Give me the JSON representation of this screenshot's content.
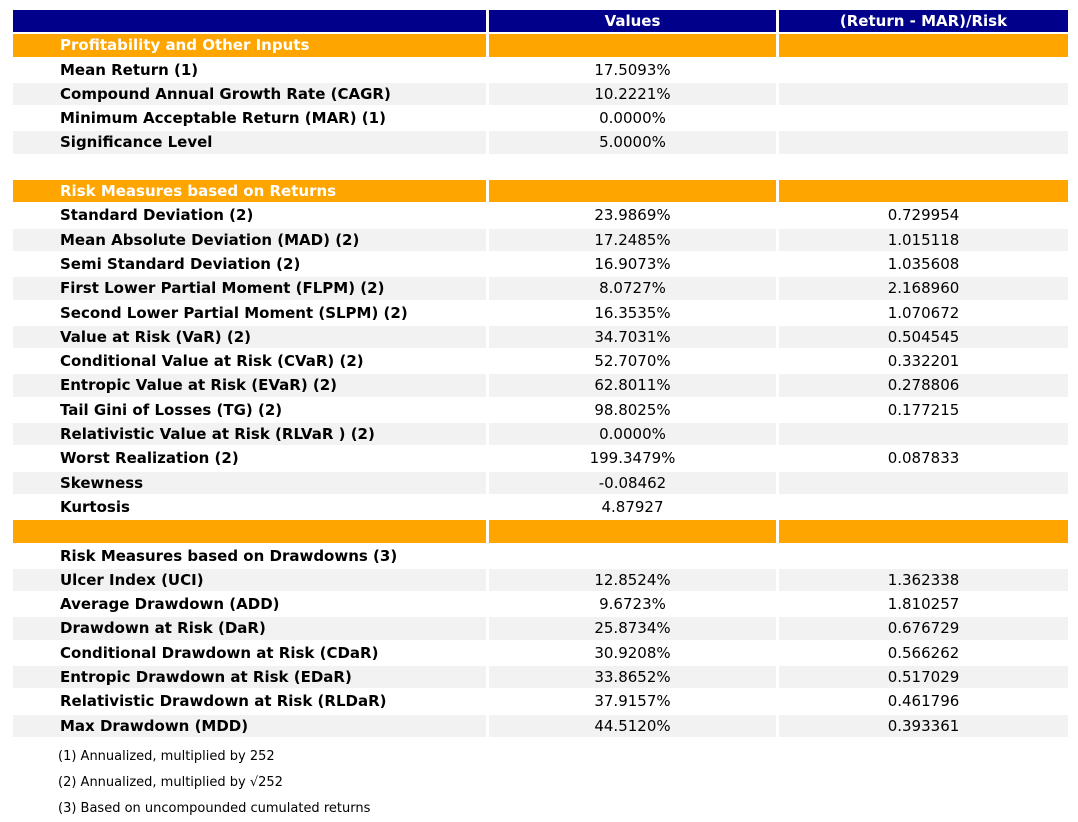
{
  "colors": {
    "header_bg": "#00008B",
    "header_text": "#FFFFFF",
    "section_bg": "#FFA500",
    "section_text": "#FFFFFF",
    "stripe_bg": "#F2F2F2",
    "row_bg": "#FFFFFF",
    "text": "#000000"
  },
  "chart_data": {
    "type": "table",
    "columns": [
      "",
      "Values",
      "(Return - MAR)/Risk"
    ],
    "rows": [
      {
        "type": "section",
        "label": "Profitability and Other Inputs",
        "value": "",
        "ratio": ""
      },
      {
        "type": "data",
        "stripe": false,
        "label": "Mean Return (1)",
        "value": "17.5093%",
        "ratio": ""
      },
      {
        "type": "data",
        "stripe": true,
        "label": "Compound Annual Growth Rate (CAGR)",
        "value": "10.2221%",
        "ratio": ""
      },
      {
        "type": "data",
        "stripe": false,
        "label": "Minimum Acceptable Return (MAR) (1)",
        "value": "0.0000%",
        "ratio": ""
      },
      {
        "type": "data",
        "stripe": true,
        "label": "Significance Level",
        "value": "5.0000%",
        "ratio": ""
      },
      {
        "type": "spacer",
        "label": "",
        "value": "",
        "ratio": ""
      },
      {
        "type": "section",
        "label": "Risk Measures based on Returns",
        "value": "",
        "ratio": ""
      },
      {
        "type": "data",
        "stripe": false,
        "label": "Standard Deviation (2)",
        "value": "23.9869%",
        "ratio": "0.729954"
      },
      {
        "type": "data",
        "stripe": true,
        "label": "Mean Absolute Deviation (MAD) (2)",
        "value": "17.2485%",
        "ratio": "1.015118"
      },
      {
        "type": "data",
        "stripe": false,
        "label": "Semi Standard Deviation (2)",
        "value": "16.9073%",
        "ratio": "1.035608"
      },
      {
        "type": "data",
        "stripe": true,
        "label": "First Lower Partial Moment (FLPM) (2)",
        "value": "8.0727%",
        "ratio": "2.168960"
      },
      {
        "type": "data",
        "stripe": false,
        "label": "Second Lower Partial Moment (SLPM) (2)",
        "value": "16.3535%",
        "ratio": "1.070672"
      },
      {
        "type": "data",
        "stripe": true,
        "label": "Value at Risk (VaR) (2)",
        "value": "34.7031%",
        "ratio": "0.504545"
      },
      {
        "type": "data",
        "stripe": false,
        "label": "Conditional Value at Risk (CVaR) (2)",
        "value": "52.7070%",
        "ratio": "0.332201"
      },
      {
        "type": "data",
        "stripe": true,
        "label": "Entropic Value at Risk (EVaR) (2)",
        "value": "62.8011%",
        "ratio": "0.278806"
      },
      {
        "type": "data",
        "stripe": false,
        "label": "Tail Gini of Losses (TG) (2)",
        "value": "98.8025%",
        "ratio": "0.177215"
      },
      {
        "type": "data",
        "stripe": true,
        "label": "Relativistic Value at Risk (RLVaR ) (2)",
        "value": "0.0000%",
        "ratio": ""
      },
      {
        "type": "data",
        "stripe": false,
        "label": "Worst Realization (2)",
        "value": "199.3479%",
        "ratio": "0.087833"
      },
      {
        "type": "data",
        "stripe": true,
        "label": "Skewness",
        "value": "-0.08462",
        "ratio": ""
      },
      {
        "type": "data",
        "stripe": false,
        "label": "Kurtosis",
        "value": "4.87927",
        "ratio": ""
      },
      {
        "type": "section",
        "label": "",
        "value": "",
        "ratio": ""
      },
      {
        "type": "subsection",
        "label": "Risk Measures based on Drawdowns (3)",
        "value": "",
        "ratio": ""
      },
      {
        "type": "data",
        "stripe": true,
        "label": "Ulcer Index (UCI)",
        "value": "12.8524%",
        "ratio": "1.362338"
      },
      {
        "type": "data",
        "stripe": false,
        "label": "Average Drawdown (ADD)",
        "value": "9.6723%",
        "ratio": "1.810257"
      },
      {
        "type": "data",
        "stripe": true,
        "label": "Drawdown at Risk (DaR)",
        "value": "25.8734%",
        "ratio": "0.676729"
      },
      {
        "type": "data",
        "stripe": false,
        "label": "Conditional Drawdown at Risk (CDaR)",
        "value": "30.9208%",
        "ratio": "0.566262"
      },
      {
        "type": "data",
        "stripe": true,
        "label": "Entropic Drawdown at Risk (EDaR)",
        "value": "33.8652%",
        "ratio": "0.517029"
      },
      {
        "type": "data",
        "stripe": false,
        "label": "Relativistic Drawdown at Risk (RLDaR)",
        "value": "37.9157%",
        "ratio": "0.461796"
      },
      {
        "type": "data",
        "stripe": true,
        "label": "Max Drawdown (MDD)",
        "value": "44.5120%",
        "ratio": "0.393361"
      }
    ]
  },
  "footnotes": [
    "(1) Annualized, multiplied by 252",
    "(2) Annualized, multiplied by √252",
    "(3) Based on uncompounded cumulated returns"
  ]
}
